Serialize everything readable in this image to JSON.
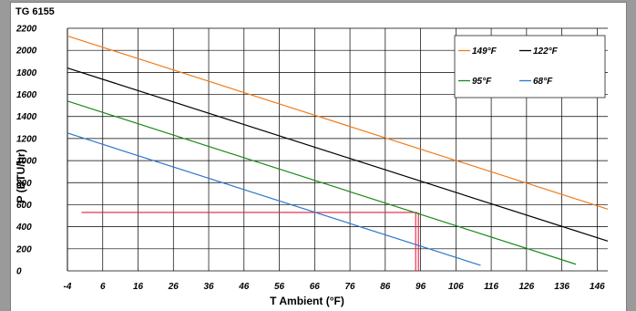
{
  "chart_data": {
    "type": "line",
    "title": "TG 6155",
    "xlabel": "T Ambient (°F)",
    "ylabel": "P (BTU/hr)",
    "xlim": [
      -4,
      149
    ],
    "ylim": [
      0,
      2200
    ],
    "xticks": [
      -4,
      6,
      16,
      26,
      36,
      46,
      56,
      66,
      76,
      86,
      96,
      106,
      116,
      126,
      136,
      146
    ],
    "yticks": [
      0,
      200,
      400,
      600,
      800,
      1000,
      1200,
      1400,
      1600,
      1800,
      2000,
      2200
    ],
    "grid": true,
    "legend_position": "top-right",
    "series": [
      {
        "name": "149°F",
        "color": "#f07c1c",
        "x": [
          -4,
          149
        ],
        "y": [
          2130,
          560
        ]
      },
      {
        "name": "122°F",
        "color": "#000000",
        "x": [
          -4,
          149
        ],
        "y": [
          1840,
          270
        ]
      },
      {
        "name": "95°F",
        "color": "#1a8a1a",
        "x": [
          -4,
          140
        ],
        "y": [
          1540,
          60
        ]
      },
      {
        "name": "68°F",
        "color": "#2a78c8",
        "x": [
          -4,
          113
        ],
        "y": [
          1250,
          50
        ]
      }
    ],
    "annotations": [
      {
        "type": "hline",
        "y": 530,
        "x_from": 0,
        "x_to": 95,
        "color": "#e02040"
      },
      {
        "type": "vline",
        "x": 95,
        "y_from": 0,
        "y_to": 530,
        "color": "#e02040"
      }
    ]
  }
}
